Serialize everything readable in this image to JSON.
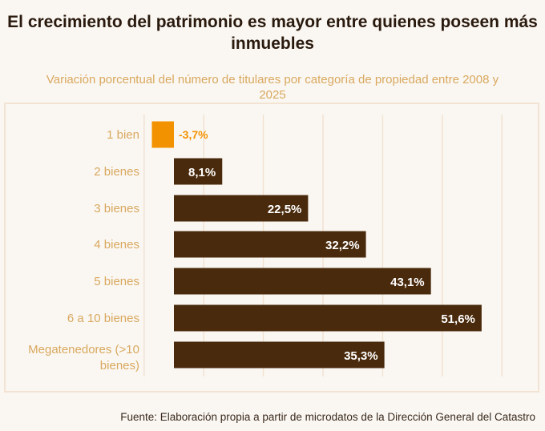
{
  "title": "El crecimiento del patrimonio es mayor entre quienes poseen más inmuebles",
  "subtitle": "Variación porcentual del número de titulares por categoría de propiedad entre 2008 y 2025",
  "source": "Fuente: Elaboración propia a partir de microdatos de la Dirección General del Catastro",
  "chart_data": {
    "type": "bar",
    "orientation": "horizontal",
    "categories": [
      "1 bien",
      "2 bienes",
      "3 bienes",
      "4 bienes",
      "5 bienes",
      "6 a 10 bienes",
      "Megatenedores (>10 bienes)"
    ],
    "values": [
      -3.7,
      8.1,
      22.5,
      32.2,
      43.1,
      51.6,
      35.3
    ],
    "labels": [
      "-3,7%",
      "8,1%",
      "22,5%",
      "32,2%",
      "43,1%",
      "51,6%",
      "35,3%"
    ],
    "xlim": [
      -5,
      55
    ],
    "gridlines": [
      -5,
      5,
      15,
      25,
      35,
      45,
      55
    ],
    "grid": true,
    "colors": {
      "negative": "#f39200",
      "positive": "#4a2a0c",
      "category_label": "#d9a85f",
      "grid": "#f1e2d2"
    }
  }
}
